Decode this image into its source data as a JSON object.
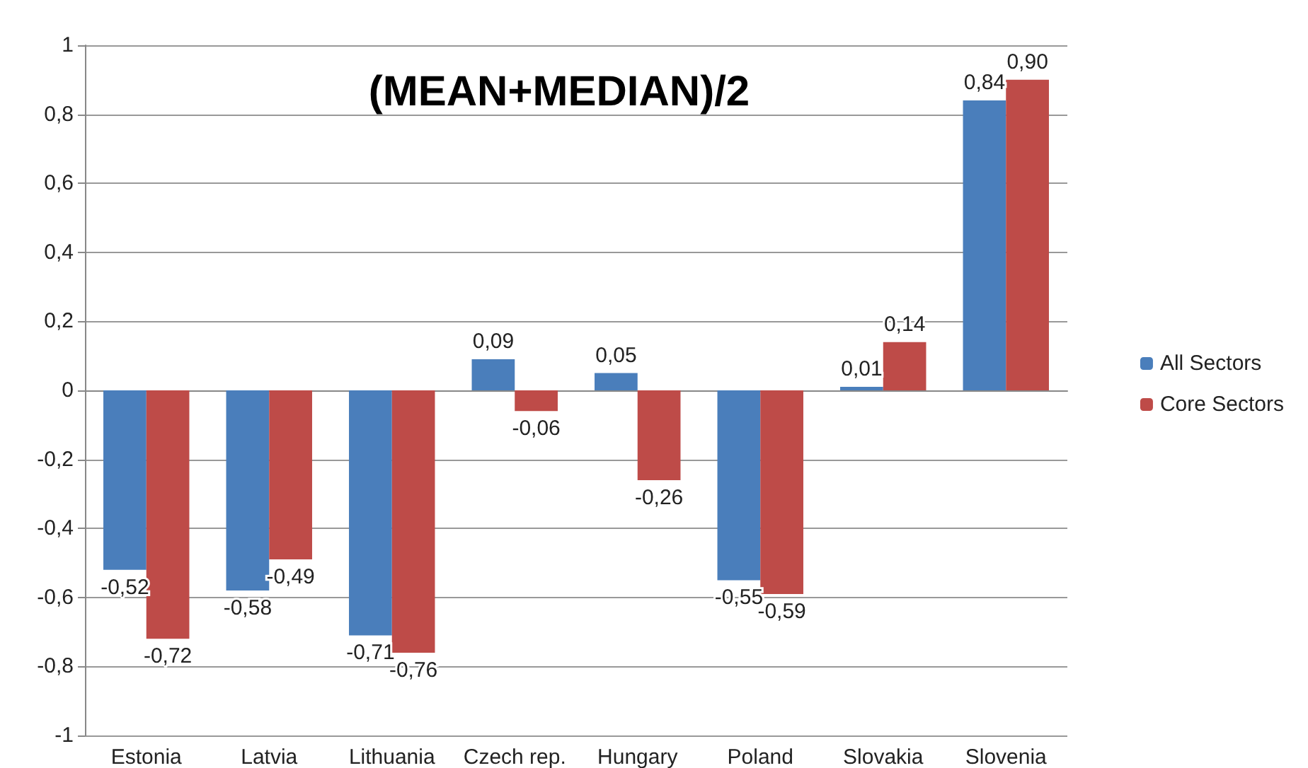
{
  "chart_data": {
    "type": "bar",
    "title": "(MEAN+MEDIAN)/2",
    "categories": [
      "Estonia",
      "Latvia",
      "Lithuania",
      "Czech rep.",
      "Hungary",
      "Poland",
      "Slovakia",
      "Slovenia"
    ],
    "series": [
      {
        "name": "All Sectors",
        "color": "#4a7ebb",
        "values": [
          -0.52,
          -0.58,
          -0.71,
          0.09,
          0.05,
          -0.55,
          0.01,
          0.84
        ],
        "value_labels": [
          "-0,52",
          "-0,58",
          "-0,71",
          "0,09",
          "0,05",
          "-0,55",
          "0,01",
          "0,84"
        ]
      },
      {
        "name": "Core Sectors",
        "color": "#be4b48",
        "values": [
          -0.72,
          -0.49,
          -0.76,
          -0.06,
          -0.26,
          -0.59,
          0.14,
          0.9
        ],
        "value_labels": [
          "-0,72",
          "-0,49",
          "-0,76",
          "-0,06",
          "-0,26",
          "-0,59",
          "0,14",
          "0,90"
        ]
      }
    ],
    "ylim": [
      -1,
      1
    ],
    "yticks": [
      {
        "value": -1,
        "label": "-1"
      },
      {
        "value": -0.8,
        "label": "-0,8"
      },
      {
        "value": -0.6,
        "label": "-0,6"
      },
      {
        "value": -0.4,
        "label": "-0,4"
      },
      {
        "value": -0.2,
        "label": "-0,2"
      },
      {
        "value": 0,
        "label": "0"
      },
      {
        "value": 0.2,
        "label": "0,2"
      },
      {
        "value": 0.4,
        "label": "0,4"
      },
      {
        "value": 0.6,
        "label": "0,6"
      },
      {
        "value": 0.8,
        "label": "0,8"
      },
      {
        "value": 1,
        "label": "1"
      }
    ],
    "grid": "y",
    "legend": "right"
  }
}
